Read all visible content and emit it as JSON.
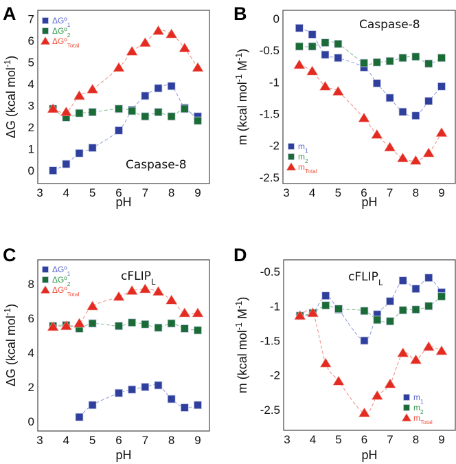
{
  "colors": {
    "series1": "#2f3f9e",
    "series2": "#1b6b36",
    "total": "#e32b22",
    "series1_text": "#5566cc",
    "series2_text": "#2f9a4c",
    "total_text": "#f0503c"
  },
  "chart_data": [
    {
      "panel": "A",
      "type": "scatter",
      "title": {
        "text": "Caspase-8",
        "sub": ""
      },
      "xlabel": "pH",
      "ylabel": [
        {
          "t": "ΔG (kcal mol"
        },
        {
          "t": "-1",
          "sup": true
        },
        {
          "t": ")"
        }
      ],
      "xlim": [
        3,
        9.5
      ],
      "ylim": [
        -0.6,
        7.4
      ],
      "xticks": [
        "3",
        "4",
        "5",
        "6",
        "7",
        "8",
        "9"
      ],
      "yticks": [
        "0",
        "1",
        "2",
        "3",
        "4",
        "5",
        "6",
        "7"
      ],
      "legend_position": "top-left",
      "series": [
        {
          "label": {
            "text": "ΔGº",
            "sub": "1"
          },
          "marker": "square",
          "color": "series1",
          "x": [
            3.5,
            4,
            4.5,
            5,
            6,
            6.5,
            7,
            7.5,
            8,
            8.5,
            9
          ],
          "y": [
            0,
            0.3,
            0.8,
            1.05,
            1.85,
            2.8,
            3.45,
            3.8,
            3.9,
            2.9,
            2.5
          ]
        },
        {
          "label": {
            "text": "ΔGº",
            "sub": "2"
          },
          "marker": "square",
          "color": "series2",
          "x": [
            3.5,
            4,
            4.5,
            5,
            6,
            6.5,
            7,
            7.5,
            8,
            8.5,
            9
          ],
          "y": [
            2.85,
            2.45,
            2.65,
            2.7,
            2.85,
            2.75,
            2.5,
            2.7,
            2.5,
            2.85,
            2.3
          ]
        },
        {
          "label": {
            "text": "ΔGº",
            "sub": "Total"
          },
          "marker": "triangle",
          "color": "total",
          "x": [
            3.5,
            4,
            4.5,
            5,
            6,
            6.5,
            7,
            7.5,
            8,
            8.5,
            9
          ],
          "y": [
            2.85,
            2.7,
            3.45,
            3.75,
            4.75,
            5.5,
            5.9,
            6.45,
            6.3,
            5.65,
            4.75
          ]
        }
      ]
    },
    {
      "panel": "B",
      "type": "scatter",
      "title": {
        "text": "Caspase-8",
        "sub": ""
      },
      "xlabel": "pH",
      "ylabel": [
        {
          "t": "m (kcal mol"
        },
        {
          "t": "-1",
          "sup": true
        },
        {
          "t": " M"
        },
        {
          "t": "-1",
          "sup": true
        },
        {
          "t": ")"
        }
      ],
      "xlim": [
        2.9,
        9.6
      ],
      "ylim": [
        -2.6,
        0.13
      ],
      "xticks": [
        "3",
        "4",
        "5",
        "6",
        "7",
        "8",
        "9"
      ],
      "yticks": [
        "0",
        "-0.5",
        "-1",
        "-1.5",
        "-2",
        "-2.5"
      ],
      "legend_position": "bottom-left",
      "series": [
        {
          "label": {
            "text": "m",
            "sub": "1"
          },
          "marker": "square",
          "color": "series1",
          "x": [
            3.5,
            4,
            4.5,
            5,
            6,
            6.5,
            7,
            7.5,
            8,
            8.5,
            9
          ],
          "y": [
            -0.15,
            -0.25,
            -0.57,
            -0.62,
            -0.77,
            -1.02,
            -1.25,
            -1.47,
            -1.53,
            -1.3,
            -1.07
          ]
        },
        {
          "label": {
            "text": "m",
            "sub": "2"
          },
          "marker": "square",
          "color": "series2",
          "x": [
            3.5,
            4,
            4.5,
            5,
            6,
            6.5,
            7,
            7.5,
            8,
            8.5,
            9
          ],
          "y": [
            -0.44,
            -0.44,
            -0.38,
            -0.4,
            -0.7,
            -0.69,
            -0.67,
            -0.62,
            -0.6,
            -0.71,
            -0.62
          ]
        },
        {
          "label": {
            "text": "m",
            "sub": "Total"
          },
          "marker": "triangle",
          "color": "total",
          "x": [
            3.5,
            4,
            4.5,
            5,
            6,
            6.5,
            7,
            7.5,
            8,
            8.5,
            9
          ],
          "y": [
            -0.73,
            -0.83,
            -1.07,
            -1.15,
            -1.57,
            -1.83,
            -2.03,
            -2.2,
            -2.24,
            -2.12,
            -1.8
          ]
        }
      ]
    },
    {
      "panel": "C",
      "type": "scatter",
      "title": {
        "text": "cFLIP",
        "sub": "L"
      },
      "xlabel": "pH",
      "ylabel": [
        {
          "t": "ΔG (kcal mol"
        },
        {
          "t": "-1",
          "sup": true
        },
        {
          "t": ")"
        }
      ],
      "xlim": [
        3,
        9.5
      ],
      "ylim": [
        -0.56,
        9.4
      ],
      "xticks": [
        "3",
        "4",
        "5",
        "6",
        "7",
        "8",
        "9"
      ],
      "yticks": [
        "0",
        "2",
        "4",
        "6",
        "8"
      ],
      "legend_position": "top-left",
      "series": [
        {
          "label": {
            "text": "ΔGº",
            "sub": "1"
          },
          "marker": "square",
          "color": "series1",
          "x": [
            4.5,
            5,
            6,
            6.5,
            7,
            7.5,
            8,
            8.5,
            9
          ],
          "y": [
            0.25,
            0.95,
            1.65,
            1.85,
            2.0,
            2.1,
            1.3,
            0.8,
            0.95
          ]
        },
        {
          "label": {
            "text": "ΔGº",
            "sub": "2"
          },
          "marker": "square",
          "color": "series2",
          "x": [
            3.5,
            4,
            4.5,
            5,
            6,
            6.5,
            7,
            7.5,
            8,
            8.5,
            9
          ],
          "y": [
            5.55,
            5.6,
            5.4,
            5.7,
            5.55,
            5.75,
            5.65,
            5.45,
            5.7,
            5.4,
            5.3
          ]
        },
        {
          "label": {
            "text": "ΔGº",
            "sub": "Total"
          },
          "marker": "triangle",
          "color": "total",
          "x": [
            3.5,
            4,
            4.5,
            5,
            6,
            6.5,
            7,
            7.5,
            8,
            8.5,
            9
          ],
          "y": [
            5.5,
            5.55,
            5.7,
            6.7,
            7.25,
            7.6,
            7.7,
            7.55,
            7.05,
            6.3,
            6.3
          ]
        }
      ]
    },
    {
      "panel": "D",
      "type": "scatter",
      "title": {
        "text": "cFLIP",
        "sub": "L"
      },
      "xlabel": "pH",
      "ylabel": [
        {
          "t": "m (kcal mol"
        },
        {
          "t": "-1",
          "sup": true
        },
        {
          "t": " M"
        },
        {
          "t": "-1",
          "sup": true
        },
        {
          "t": ")"
        }
      ],
      "xlim": [
        2.9,
        9.6
      ],
      "ylim": [
        -2.8,
        -0.33
      ],
      "xticks": [
        "3",
        "4",
        "5",
        "6",
        "7",
        "8",
        "9"
      ],
      "yticks": [
        "-0.5",
        "-1",
        "-1.5",
        "-2",
        "-2.5"
      ],
      "legend_position": "bottom-right",
      "series": [
        {
          "label": {
            "text": "m",
            "sub": "1"
          },
          "marker": "square",
          "color": "series1",
          "x": [
            3.5,
            4,
            4.5,
            5,
            6,
            6.5,
            7,
            7.5,
            8,
            8.5,
            9
          ],
          "y": [
            -1.14,
            -1.1,
            -0.85,
            -1.05,
            -1.5,
            -1.12,
            -0.93,
            -0.63,
            -0.75,
            -0.59,
            -0.8
          ]
        },
        {
          "label": {
            "text": "m",
            "sub": "2"
          },
          "marker": "square",
          "color": "series2",
          "x": [
            3.5,
            4,
            4.5,
            5,
            6,
            6.5,
            7,
            7.5,
            8,
            8.5,
            9
          ],
          "y": [
            -1.14,
            -1.1,
            -0.99,
            -1.04,
            -1.07,
            -1.2,
            -1.22,
            -1.06,
            -1.05,
            -1.0,
            -0.86
          ]
        },
        {
          "label": {
            "text": "m",
            "sub": "Total"
          },
          "marker": "triangle",
          "color": "total",
          "x": [
            3.5,
            4,
            4.5,
            5,
            6,
            6.5,
            7,
            7.5,
            8,
            8.5,
            9
          ],
          "y": [
            -1.14,
            -1.1,
            -1.83,
            -2.09,
            -2.55,
            -2.3,
            -2.13,
            -1.68,
            -1.78,
            -1.59,
            -1.65
          ]
        }
      ]
    }
  ]
}
